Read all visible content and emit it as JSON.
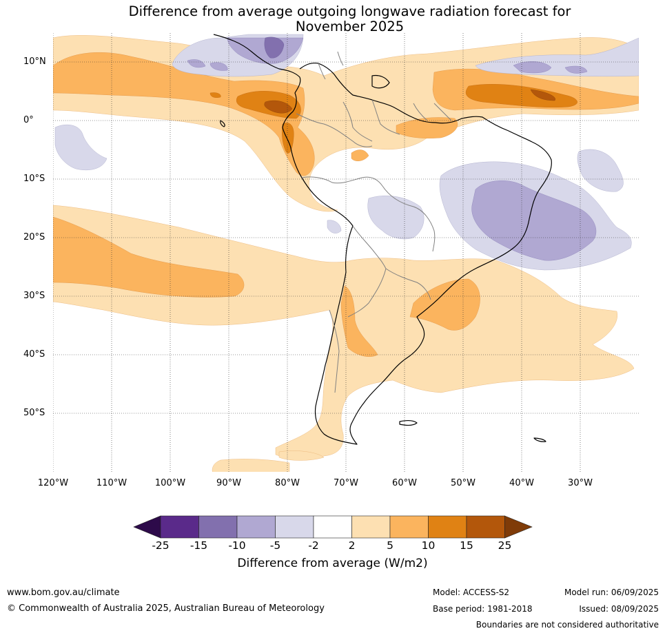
{
  "title": {
    "line1": "Difference from average outgoing longwave radiation forecast for",
    "line2": "November 2025"
  },
  "map": {
    "lat_labels": [
      "10°N",
      "0°",
      "10°S",
      "20°S",
      "30°S",
      "40°S",
      "50°S"
    ],
    "lon_labels": [
      "120°W",
      "110°W",
      "100°W",
      "90°W",
      "80°W",
      "70°W",
      "60°W",
      "50°W",
      "40°W",
      "30°W"
    ],
    "lat_extent": [
      -60,
      15
    ],
    "lon_extent": [
      -120,
      -20
    ],
    "region": "South America"
  },
  "colorbar": {
    "ticks": [
      "-25",
      "-15",
      "-10",
      "-5",
      "-2",
      "2",
      "5",
      "10",
      "15",
      "25"
    ],
    "colors": {
      "lt_-25": "#2d0a4a",
      "-25_-15": "#5a2a8a",
      "-15_-10": "#8270ae",
      "-10_-5": "#b0a8d2",
      "-5_-2": "#d8d8ea",
      "-2_2": "#ffffff",
      "2_5": "#fde0b2",
      "5_10": "#fbb45e",
      "10_15": "#e08214",
      "15_25": "#b3570b",
      "gt_25": "#7f3b08"
    },
    "label": "Difference from average (W/m2)"
  },
  "footer": {
    "website": "www.bom.gov.au/climate",
    "copyright": "© Commonwealth of Australia 2025, Australian Bureau of Meteorology",
    "model": "Model: ACCESS-S2",
    "base_period": "Base period: 1981-2018",
    "model_run": "Model run: 06/09/2025",
    "issued": "Issued: 08/09/2025",
    "disclaimer": "Boundaries are not considered authoritative"
  }
}
